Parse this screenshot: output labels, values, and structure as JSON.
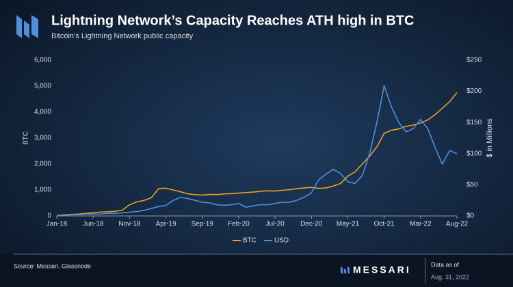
{
  "title": "Lightning Network’s Capacity Reaches ATH high in BTC",
  "subtitle": "Bitcoin’s Lightning Network public capacity",
  "source": "Source: Messari, Glassnode",
  "brand": "MESSARI",
  "as_of_label": "Data as of",
  "as_of_date": "Aug. 31, 2022",
  "chart_data": {
    "type": "line",
    "x": [
      "Jan-18",
      "Feb-18",
      "Mar-18",
      "Apr-18",
      "May-18",
      "Jun-18",
      "Jul-18",
      "Aug-18",
      "Sep-18",
      "Oct-18",
      "Nov-18",
      "Dec-18",
      "Jan-19",
      "Feb-19",
      "Mar-19",
      "Apr-19",
      "May-19",
      "Jun-19",
      "Jul-19",
      "Aug-19",
      "Sep-19",
      "Oct-19",
      "Nov-19",
      "Dec-19",
      "Jan-20",
      "Feb-20",
      "Mar-20",
      "Apr-20",
      "May-20",
      "Jun-20",
      "Jul-20",
      "Aug-20",
      "Sep-20",
      "Oct-20",
      "Nov-20",
      "Dec-20",
      "Jan-21",
      "Feb-21",
      "Mar-21",
      "Apr-21",
      "May-21",
      "Jun-21",
      "Jul-21",
      "Aug-21",
      "Sep-21",
      "Oct-21",
      "Nov-21",
      "Dec-21",
      "Jan-22",
      "Feb-22",
      "Mar-22",
      "Apr-22",
      "May-22",
      "Jun-22",
      "Jul-22",
      "Aug-22"
    ],
    "xticks": [
      "Jan-18",
      "Jun-18",
      "Nov-18",
      "Apr-19",
      "Sep-19",
      "Feb-20",
      "Jul-20",
      "Dec-20",
      "May-21",
      "Oct-21",
      "Mar-22",
      "Aug-22"
    ],
    "series": [
      {
        "name": "BTC",
        "color": "#e9a21d",
        "axis": "y",
        "values": [
          20,
          40,
          60,
          70,
          100,
          120,
          150,
          160,
          180,
          220,
          430,
          540,
          600,
          700,
          1050,
          1070,
          1000,
          930,
          850,
          820,
          800,
          830,
          820,
          850,
          860,
          880,
          900,
          920,
          950,
          970,
          960,
          990,
          1010,
          1050,
          1080,
          1100,
          1060,
          1080,
          1150,
          1250,
          1530,
          1700,
          2000,
          2300,
          2660,
          3180,
          3300,
          3350,
          3450,
          3500,
          3580,
          3700,
          3900,
          4150,
          4400,
          4750
        ]
      },
      {
        "name": "USD",
        "color": "#4f8fdc",
        "axis": "y2",
        "values": [
          1,
          1,
          2,
          2,
          3,
          3,
          3,
          4,
          4,
          5,
          6,
          7,
          9,
          12,
          15,
          17,
          25,
          30,
          28,
          25,
          22,
          21,
          18,
          17,
          18,
          20,
          14,
          16,
          18,
          18,
          20,
          22,
          22,
          25,
          30,
          37,
          58,
          67,
          75,
          68,
          55,
          52,
          65,
          100,
          150,
          209,
          175,
          150,
          135,
          140,
          155,
          140,
          110,
          83,
          105,
          100
        ]
      }
    ],
    "ylabel": "BTC",
    "y2label": "$ in Millions",
    "ylim": [
      0,
      6000
    ],
    "yticks": [
      0,
      {
        "value": 1000,
        "label": "1,000"
      },
      {
        "value": 2000,
        "label": "2,000"
      },
      {
        "value": 3000,
        "label": "3,000"
      },
      {
        "value": 4000,
        "label": "4,000"
      },
      {
        "value": 5000,
        "label": "5,000"
      },
      {
        "value": 6000,
        "label": "6,000"
      }
    ],
    "y2lim": [
      0,
      250
    ],
    "y2ticks": [
      {
        "value": 0,
        "label": "$0"
      },
      {
        "value": 50,
        "label": "$50"
      },
      {
        "value": 100,
        "label": "$100"
      },
      {
        "value": 150,
        "label": "$150"
      },
      {
        "value": 200,
        "label": "$200"
      },
      {
        "value": 250,
        "label": "$250"
      }
    ],
    "grid": false,
    "legend": "bottom"
  }
}
